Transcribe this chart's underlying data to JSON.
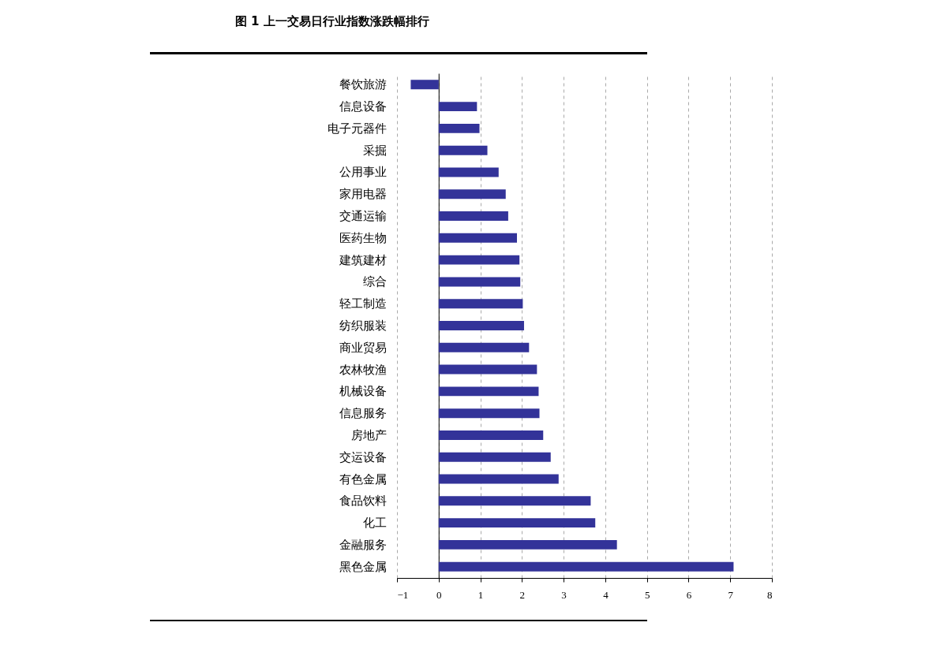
{
  "chart_data": {
    "type": "bar",
    "orientation": "horizontal",
    "title": "图 1  上一交易日行业指数涨跌幅排行",
    "categories": [
      "餐饮旅游",
      "信息设备",
      "电子元器件",
      "采掘",
      "公用事业",
      "家用电器",
      "交通运输",
      "医药生物",
      "建筑建材",
      "综合",
      "轻工制造",
      "纺织服装",
      "商业贸易",
      "农林牧渔",
      "机械设备",
      "信息服务",
      "房地产",
      "交运设备",
      "有色金属",
      "食品饮料",
      "化工",
      "金融服务",
      "黑色金属"
    ],
    "values": [
      -0.67,
      0.92,
      0.98,
      1.17,
      1.44,
      1.61,
      1.67,
      1.88,
      1.94,
      1.96,
      2.02,
      2.05,
      2.17,
      2.36,
      2.4,
      2.42,
      2.51,
      2.69,
      2.88,
      3.65,
      3.76,
      4.28,
      7.08
    ],
    "color": "#333399",
    "xlim": [
      -1,
      8
    ],
    "xticks": [
      {
        "value": -1,
        "label": "−1"
      },
      0,
      1,
      2,
      3,
      4,
      5,
      6,
      7,
      8
    ],
    "grid": "x"
  }
}
